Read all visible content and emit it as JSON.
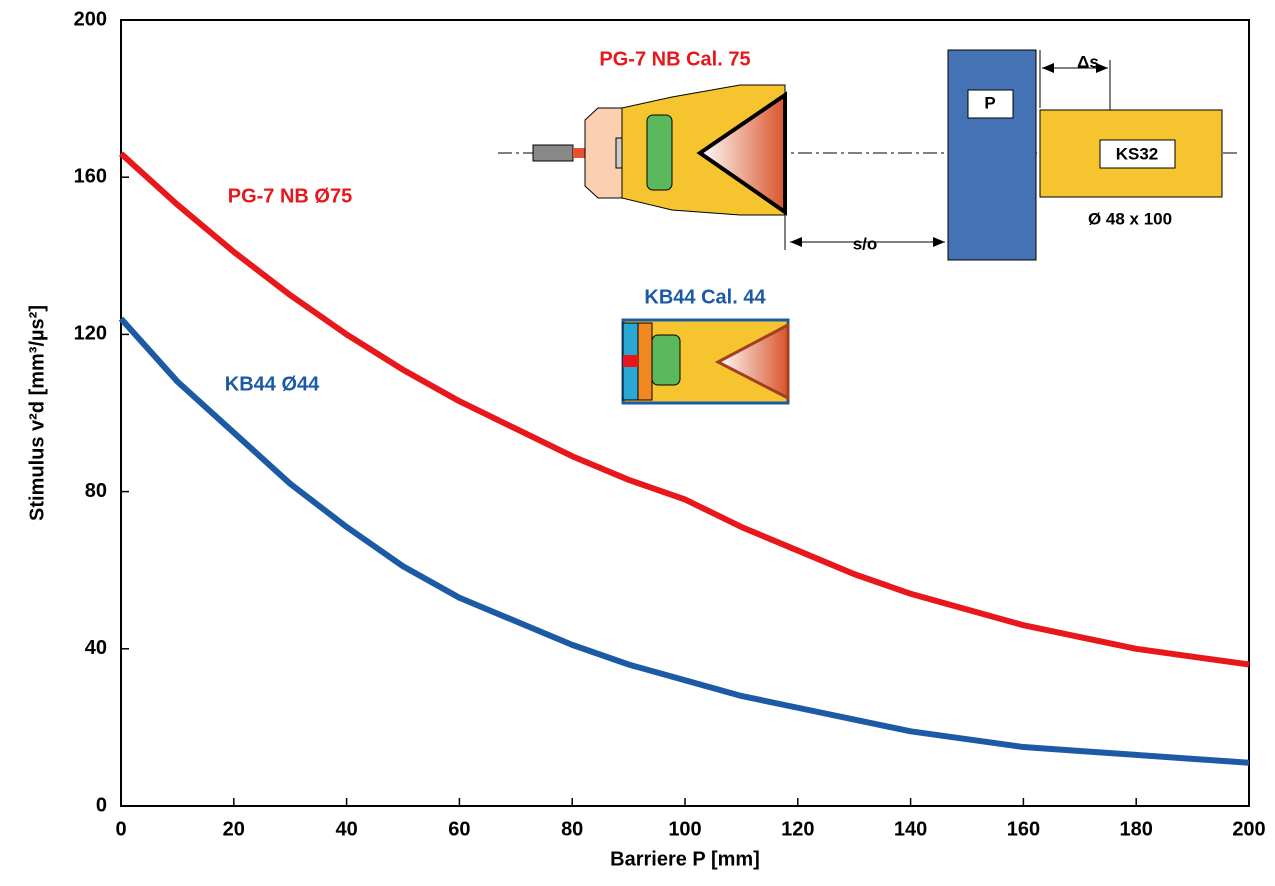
{
  "chart_data": {
    "type": "line",
    "x_label": "Barriere P [mm]",
    "y_label": "Stimulus v²d [mm³/µs²]",
    "x": [
      0,
      10,
      20,
      30,
      40,
      50,
      60,
      70,
      80,
      90,
      100,
      110,
      120,
      130,
      140,
      150,
      160,
      170,
      180,
      190,
      200
    ],
    "series": [
      {
        "name": "PG-7 NB  Ø75",
        "color": "#e8171b",
        "values": [
          166,
          153,
          141,
          130,
          120,
          111,
          103,
          96,
          89,
          83,
          78,
          71,
          65,
          59,
          54,
          50,
          46,
          43,
          40,
          38,
          36
        ]
      },
      {
        "name": "KB44  Ø44",
        "color": "#1d5aa6",
        "values": [
          124,
          108,
          95,
          82,
          71,
          61,
          53,
          47,
          41,
          36,
          32,
          28,
          25,
          22,
          19,
          17,
          15,
          14,
          13,
          12,
          11
        ]
      }
    ],
    "xlim": [
      0,
      200
    ],
    "xticks": [
      0,
      20,
      40,
      60,
      80,
      100,
      120,
      140,
      160,
      180,
      200
    ],
    "ylim": [
      0,
      200
    ],
    "yticks": [
      0,
      40,
      80,
      120,
      160,
      200
    ],
    "annotations": [
      "PG-7 NB  Cal. 75",
      "KB44  Cal. 44",
      "P",
      "KS32",
      "Δs",
      "s/o",
      "Ø 48 x 100"
    ]
  }
}
